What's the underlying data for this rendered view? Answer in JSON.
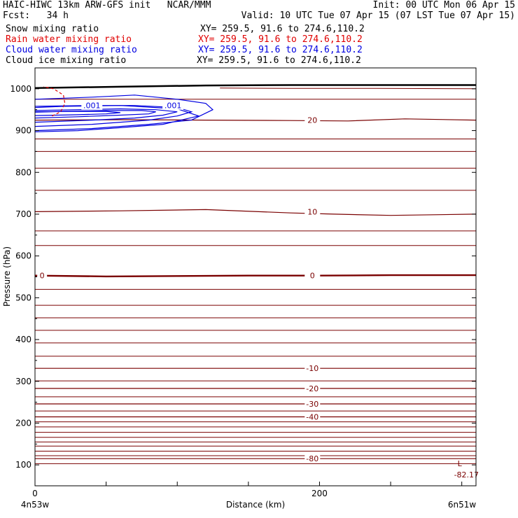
{
  "header": {
    "title": "HAIC-HIWC 13km ARW-GFS init   NCAR/MMM",
    "init": "Init: 00 UTC Mon 06 Apr 15",
    "fcst": "Fcst:   34 h",
    "valid": "Valid: 10 UTC Tue 07 Apr 15 (07 LST Tue 07 Apr 15)",
    "fields": [
      {
        "name": "Snow mixing ratio",
        "xy": "XY= 259.5, 91.6 to 274.6,110.2",
        "color": "#000000"
      },
      {
        "name": "Rain water mixing ratio",
        "xy": "XY= 259.5, 91.6 to 274.6,110.2",
        "color": "#e00000"
      },
      {
        "name": "Cloud water mixing ratio",
        "xy": "XY= 259.5, 91.6 to 274.6,110.2",
        "color": "#0000e0"
      },
      {
        "name": "Cloud ice mixing ratio",
        "xy": "XY= 259.5, 91.6 to 274.6,110.2",
        "color": "#000000"
      }
    ]
  },
  "chart_data": {
    "type": "contour cross-section",
    "xlabel": "Distance (km)",
    "ylabel": "Pressure (hPa)",
    "xlim": [
      0,
      310
    ],
    "ylim": [
      1050,
      50
    ],
    "x_ticks": [
      0,
      200
    ],
    "y_ticks": [
      100,
      200,
      300,
      400,
      500,
      600,
      700,
      800,
      900,
      1000
    ],
    "x_start_label": "4n53w",
    "x_end_label": "6n51w",
    "temperature_color": "#7a0000",
    "cloud_water_color": "#0000e0",
    "rain_color": "#e00000",
    "temperature_isotherms": [
      {
        "label": "-80",
        "x": [
          0,
          310
        ],
        "p": [
          115,
          115
        ]
      },
      {
        "label": "-40",
        "x": [
          0,
          310
        ],
        "p": [
          215,
          215
        ]
      },
      {
        "label": "-30",
        "x": [
          0,
          310
        ],
        "p": [
          246,
          246
        ]
      },
      {
        "label": "-20",
        "x": [
          0,
          310
        ],
        "p": [
          283,
          283
        ]
      },
      {
        "label": "-10",
        "x": [
          0,
          310
        ],
        "p": [
          331,
          331
        ]
      },
      {
        "label": "0",
        "x": [
          0,
          50,
          100,
          150,
          200,
          250,
          310
        ],
        "p": [
          553,
          551,
          552,
          553,
          553,
          554,
          554
        ]
      },
      {
        "label": "10",
        "x": [
          0,
          60,
          120,
          180,
          210,
          250,
          310
        ],
        "p": [
          706,
          708,
          711,
          703,
          700,
          697,
          700
        ]
      },
      {
        "label": "20",
        "x": [
          0,
          60,
          120,
          180,
          220,
          260,
          310
        ],
        "p": [
          925,
          926,
          925,
          924,
          923,
          928,
          925
        ]
      }
    ],
    "temperature_labels_x": 195,
    "minimum": {
      "label": "L",
      "value": "-82.17",
      "x": 297,
      "p": 104
    },
    "cloud_water_labels": [
      ".001",
      ".001"
    ],
    "rain_contour": {
      "x": [
        12,
        18,
        21,
        20,
        13,
        6
      ],
      "p": [
        935,
        945,
        965,
        985,
        1000,
        1005
      ]
    },
    "cloud_water_contours": [
      {
        "x": [
          0,
          40,
          80,
          110,
          125,
          120,
          100,
          70,
          40,
          0
        ],
        "p": [
          900,
          905,
          915,
          925,
          950,
          965,
          975,
          985,
          980,
          975
        ]
      },
      {
        "x": [
          0,
          40,
          80,
          100,
          110,
          100,
          70,
          40,
          0
        ],
        "p": [
          910,
          915,
          925,
          935,
          945,
          955,
          960,
          960,
          958
        ]
      },
      {
        "x": [
          0,
          40,
          70,
          90,
          100,
          85,
          60,
          30,
          0
        ],
        "p": [
          920,
          925,
          930,
          937,
          945,
          950,
          952,
          950,
          948
        ]
      },
      {
        "x": [
          0,
          30,
          60,
          80,
          85,
          75,
          50,
          20,
          0
        ],
        "p": [
          930,
          933,
          937,
          940,
          945,
          948,
          948,
          946,
          944
        ]
      },
      {
        "x": [
          0,
          30,
          50,
          60,
          50,
          30,
          0
        ],
        "p": [
          936,
          938,
          940,
          943,
          946,
          946,
          945
        ]
      },
      {
        "x": [
          0,
          30,
          60,
          90,
          115,
          100,
          60,
          20,
          0
        ],
        "p": [
          897,
          900,
          907,
          915,
          935,
          952,
          960,
          958,
          955
        ]
      }
    ]
  }
}
